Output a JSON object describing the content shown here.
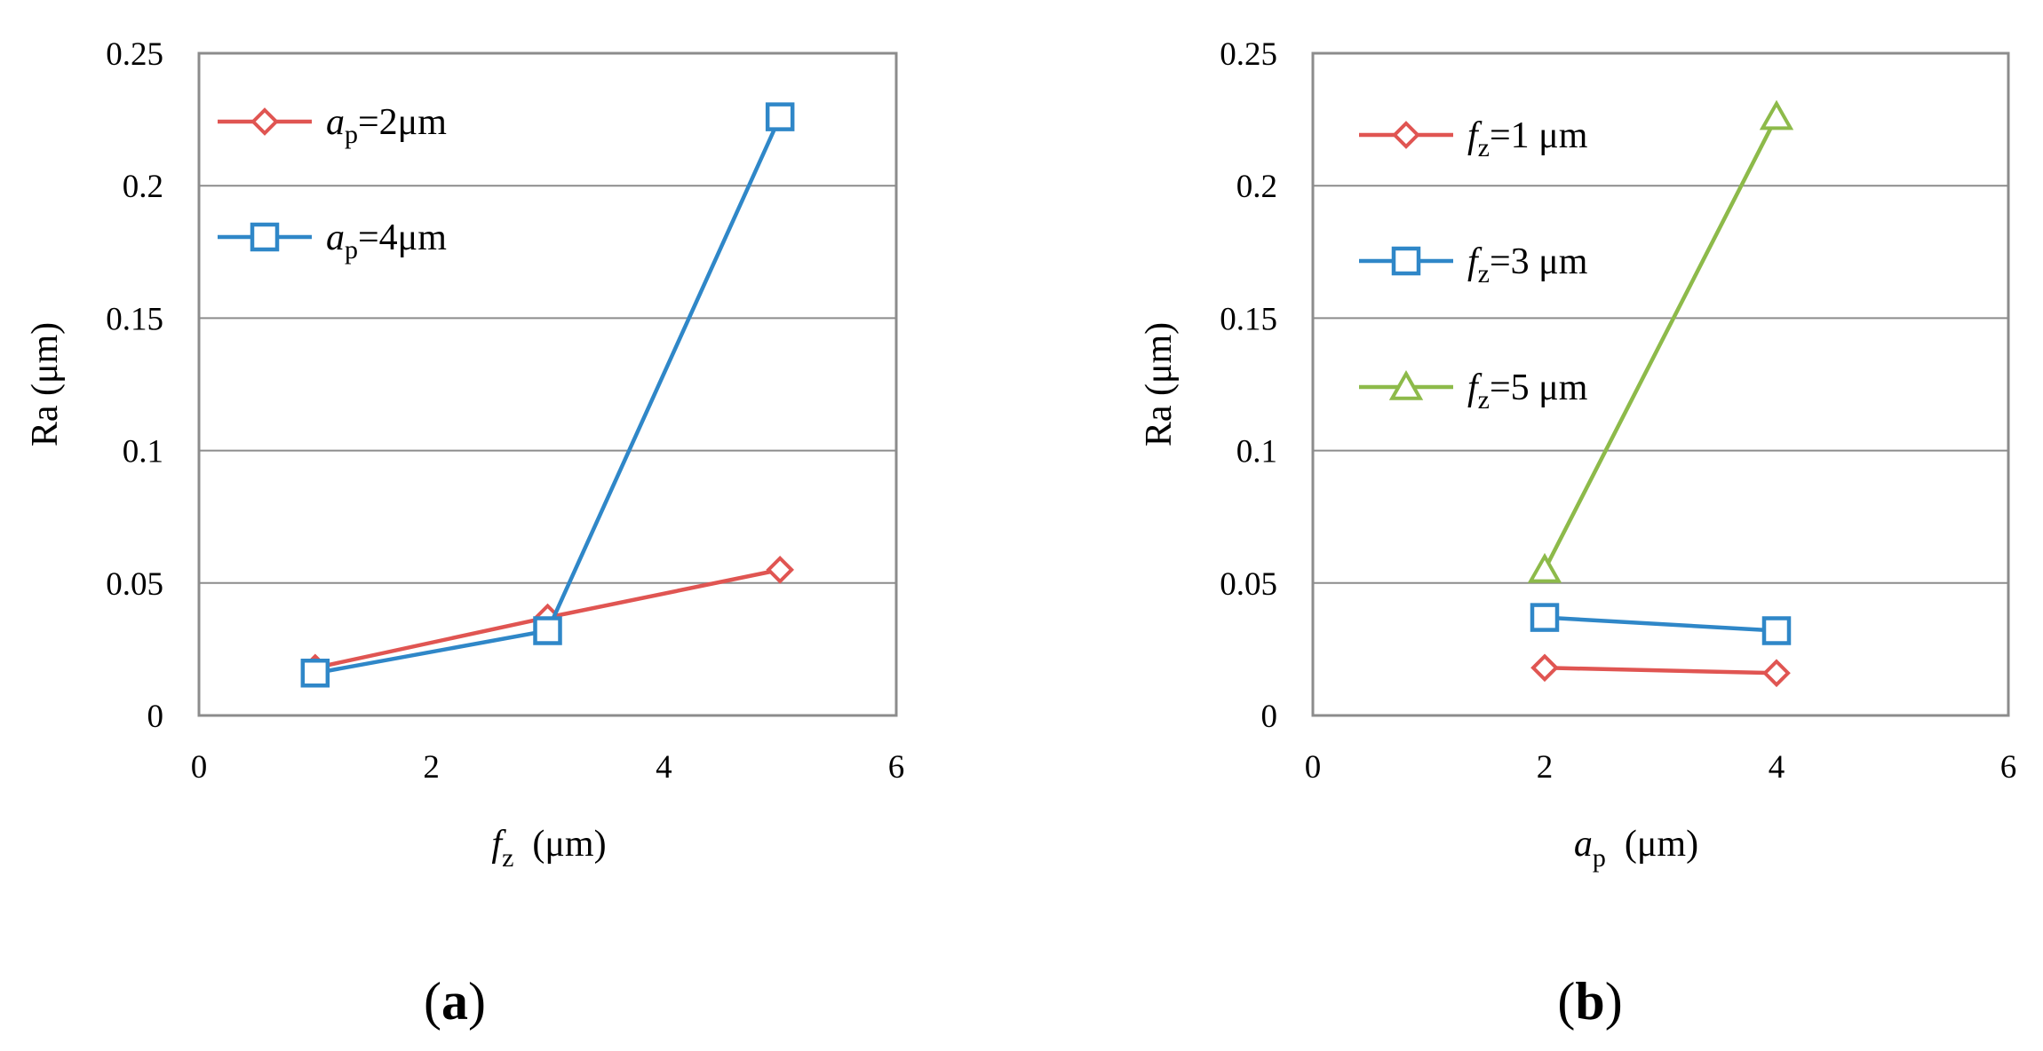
{
  "chart_data": [
    {
      "type": "line",
      "panel_label": "a",
      "xlabel": {
        "main": "f",
        "sub": "z",
        "unit": "(μm)"
      },
      "ylabel": "Ra (μm)",
      "xlim": [
        0,
        6
      ],
      "ylim": [
        0,
        0.25
      ],
      "xticks": [
        "0",
        "2",
        "4",
        "6"
      ],
      "yticks": [
        "0",
        "0.05",
        "0.1",
        "0.15",
        "0.2",
        "0.25"
      ],
      "grid": true,
      "legend_position": "top-left",
      "series": [
        {
          "name": "=2μm",
          "label_main": "a",
          "label_sub": "p",
          "label_rest": "=2μm",
          "marker": "diamond",
          "color": "#E05552",
          "points": [
            {
              "x": 1,
              "y": 0.018
            },
            {
              "x": 3,
              "y": 0.037
            },
            {
              "x": 5,
              "y": 0.055
            }
          ]
        },
        {
          "name": "=4μm",
          "label_main": "a",
          "label_sub": "p",
          "label_rest": "=4μm",
          "marker": "square",
          "color": "#2F87C8",
          "points": [
            {
              "x": 1,
              "y": 0.016
            },
            {
              "x": 3,
              "y": 0.032
            },
            {
              "x": 5,
              "y": 0.226
            }
          ]
        }
      ]
    },
    {
      "type": "line",
      "panel_label": "b",
      "xlabel": {
        "main": "a",
        "sub": "p",
        "unit": "(μm)"
      },
      "ylabel": "Ra (μm)",
      "xlim": [
        0,
        6
      ],
      "ylim": [
        0,
        0.25
      ],
      "xticks": [
        "0",
        "2",
        "4",
        "6"
      ],
      "yticks": [
        "0",
        "0.05",
        "0.1",
        "0.15",
        "0.2",
        "0.25"
      ],
      "grid": true,
      "legend_position": "top-left",
      "series": [
        {
          "name": "=1 μm",
          "label_main": "f",
          "label_sub": "z",
          "label_rest": "=1 μm",
          "marker": "diamond",
          "color": "#E05552",
          "points": [
            {
              "x": 2,
              "y": 0.018
            },
            {
              "x": 4,
              "y": 0.016
            }
          ]
        },
        {
          "name": "=3 μm",
          "label_main": "f",
          "label_sub": "z",
          "label_rest": "=3 μm",
          "marker": "square",
          "color": "#2F87C8",
          "points": [
            {
              "x": 2,
              "y": 0.037
            },
            {
              "x": 4,
              "y": 0.032
            }
          ]
        },
        {
          "name": "=5 μm",
          "label_main": "f",
          "label_sub": "z",
          "label_rest": "=5 μm",
          "marker": "triangle",
          "color": "#8DBA4A",
          "points": [
            {
              "x": 2,
              "y": 0.055
            },
            {
              "x": 4,
              "y": 0.226
            }
          ]
        }
      ]
    }
  ]
}
